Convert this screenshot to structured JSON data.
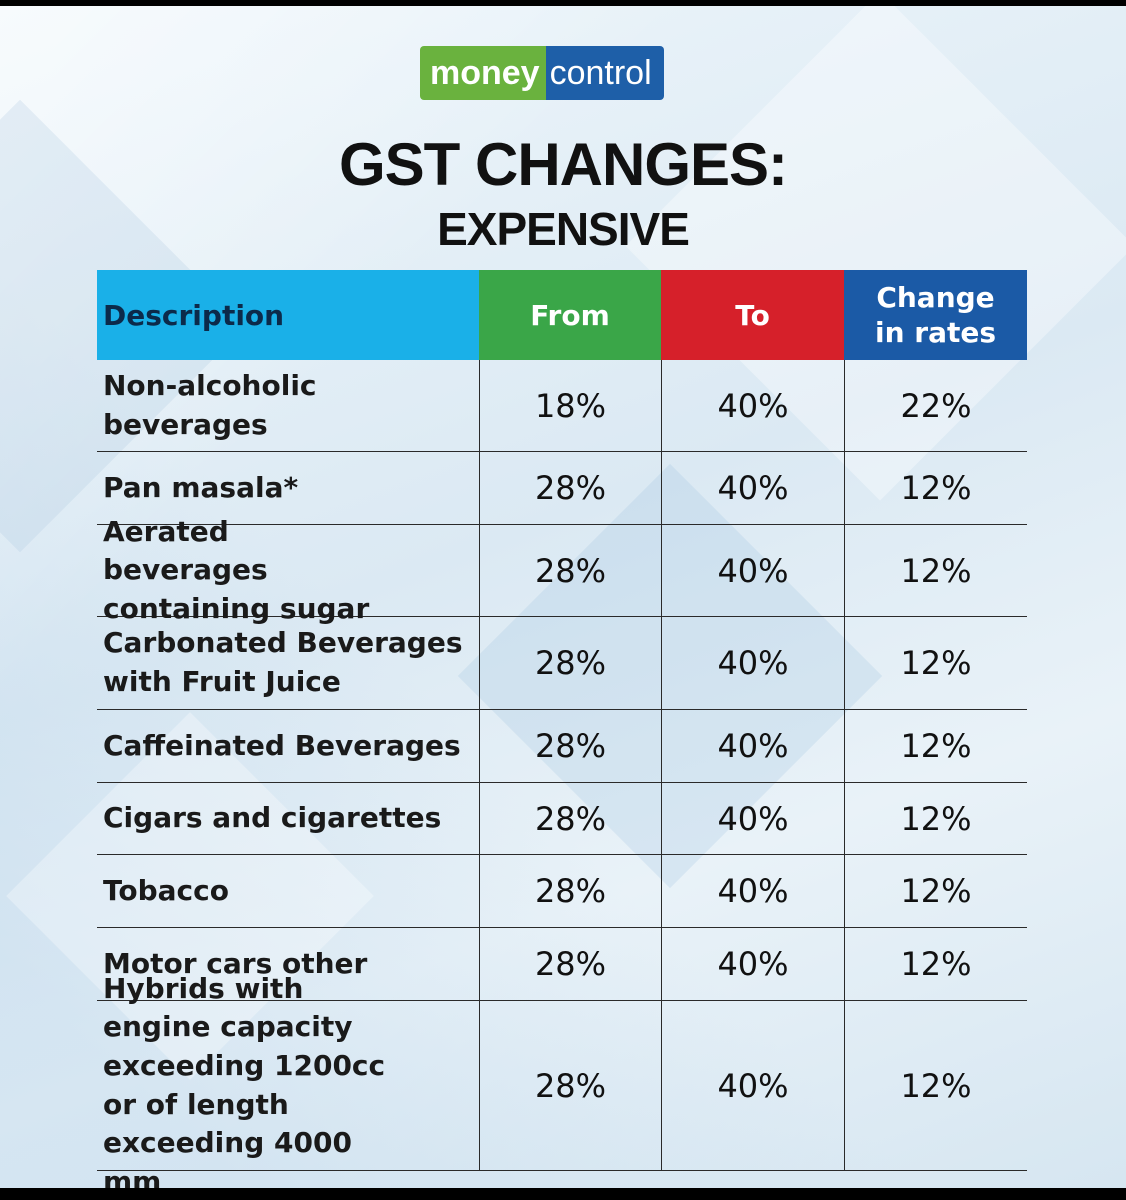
{
  "logo": {
    "part1": "money",
    "part2": "control"
  },
  "title": "GST CHANGES:",
  "subtitle": "EXPENSIVE",
  "table": {
    "headers": {
      "description": "Description",
      "from": "From",
      "to": "To",
      "change": "Change in rates"
    },
    "rows": [
      {
        "description": "Non-alcoholic beverages",
        "from": "18%",
        "to": "40%",
        "change": "22%"
      },
      {
        "description": "Pan masala*",
        "from": "28%",
        "to": "40%",
        "change": "12%"
      },
      {
        "description": "Aerated beverages containing sugar",
        "from": "28%",
        "to": "40%",
        "change": "12%"
      },
      {
        "description": "Carbonated Beverages with Fruit Juice",
        "from": "28%",
        "to": "40%",
        "change": "12%"
      },
      {
        "description": "Caffeinated Beverages",
        "from": "28%",
        "to": "40%",
        "change": "12%"
      },
      {
        "description": "Cigars and cigarettes",
        "from": "28%",
        "to": "40%",
        "change": "12%"
      },
      {
        "description": "Tobacco",
        "from": "28%",
        "to": "40%",
        "change": "12%"
      },
      {
        "description": "Motor cars other",
        "from": "28%",
        "to": "40%",
        "change": "12%"
      },
      {
        "description": "Hybrids with engine capacity exceeding 1200cc or of length exceeding 4000 mm",
        "from": "28%",
        "to": "40%",
        "change": "12%"
      }
    ]
  },
  "colors": {
    "logo_green": "#6ab23e",
    "logo_blue": "#1e5fa8",
    "header_description": "#1ab0e8",
    "header_from": "#3aa648",
    "header_to": "#d6202a",
    "header_change": "#1b5aa6"
  }
}
